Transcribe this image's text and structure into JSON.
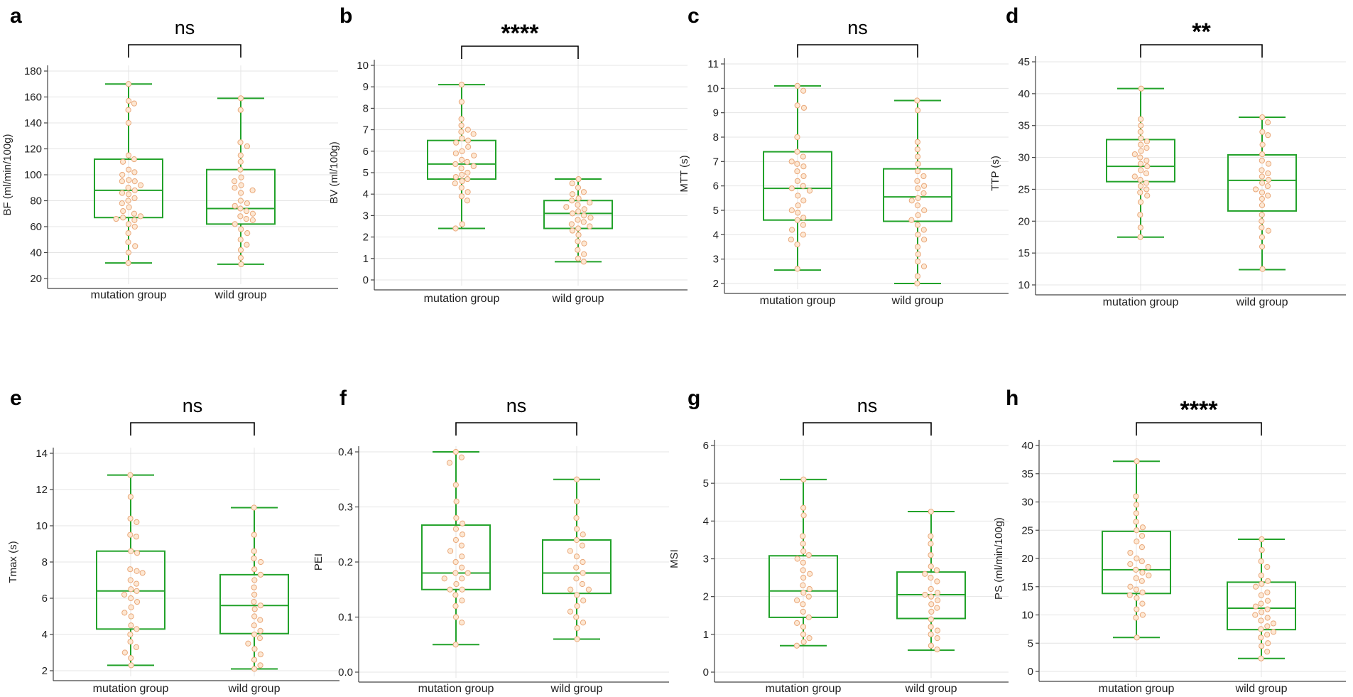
{
  "chart_data": [
    {
      "panel": "a",
      "type": "box",
      "significance": "ns",
      "categories": [
        "mutation group",
        "wild group"
      ],
      "ylabel": "BF (ml/min/100g)",
      "ylim": [
        20,
        180
      ],
      "yticks": [
        20,
        40,
        60,
        80,
        100,
        120,
        140,
        160,
        180
      ],
      "series": [
        {
          "min": 32,
          "q1": 67,
          "median": 88,
          "q3": 112,
          "max": 170,
          "points": [
            170,
            157,
            155,
            150,
            140,
            115,
            112,
            110,
            104,
            102,
            100,
            96,
            95,
            95,
            92,
            90,
            88,
            86,
            85,
            82,
            80,
            78,
            75,
            72,
            70,
            68,
            67,
            66,
            65,
            62,
            60,
            55,
            48,
            45,
            40,
            32
          ]
        },
        {
          "min": 31,
          "q1": 62,
          "median": 74,
          "q3": 104,
          "max": 159,
          "points": [
            159,
            150,
            125,
            122,
            115,
            110,
            104,
            98,
            95,
            92,
            90,
            88,
            86,
            80,
            78,
            76,
            74,
            72,
            70,
            68,
            66,
            65,
            62,
            58,
            55,
            50,
            46,
            42,
            36,
            31
          ]
        }
      ]
    },
    {
      "panel": "b",
      "type": "box",
      "significance": "****",
      "categories": [
        "mutation group",
        "wild group"
      ],
      "ylabel": "BV (ml/100g)",
      "ylim": [
        0,
        10
      ],
      "yticks": [
        0,
        1,
        2,
        3,
        4,
        5,
        6,
        7,
        8,
        9,
        10
      ],
      "series": [
        {
          "min": 2.4,
          "q1": 4.7,
          "median": 5.4,
          "q3": 6.5,
          "max": 9.1,
          "points": [
            9.1,
            8.3,
            7.5,
            7.2,
            7.0,
            6.9,
            6.8,
            6.6,
            6.5,
            6.4,
            6.2,
            6.0,
            5.9,
            5.8,
            5.6,
            5.5,
            5.4,
            5.3,
            5.2,
            5.0,
            4.9,
            4.8,
            4.7,
            4.6,
            4.5,
            4.3,
            4.1,
            3.9,
            3.7,
            2.6,
            2.4
          ]
        },
        {
          "min": 0.85,
          "q1": 2.4,
          "median": 3.1,
          "q3": 3.7,
          "max": 4.7,
          "points": [
            4.7,
            4.5,
            4.3,
            4.1,
            4.0,
            3.8,
            3.7,
            3.6,
            3.5,
            3.4,
            3.3,
            3.2,
            3.1,
            3.0,
            2.9,
            2.8,
            2.7,
            2.6,
            2.5,
            2.4,
            2.3,
            2.1,
            1.8,
            1.7,
            1.4,
            1.2,
            1.0,
            0.85
          ]
        }
      ]
    },
    {
      "panel": "c",
      "type": "box",
      "significance": "ns",
      "categories": [
        "mutation group",
        "wild group"
      ],
      "ylabel": "MTT (s)",
      "ylim": [
        2,
        11
      ],
      "yticks": [
        2,
        3,
        4,
        5,
        6,
        7,
        8,
        9,
        10,
        11
      ],
      "series": [
        {
          "min": 2.55,
          "q1": 4.6,
          "median": 5.9,
          "q3": 7.4,
          "max": 10.1,
          "points": [
            10.1,
            9.9,
            9.3,
            9.2,
            8.0,
            7.4,
            7.2,
            7.0,
            6.9,
            6.8,
            6.6,
            6.4,
            6.2,
            6.0,
            5.9,
            5.8,
            5.6,
            5.4,
            5.2,
            5.0,
            4.9,
            4.7,
            4.6,
            4.4,
            4.2,
            4.0,
            3.8,
            3.6,
            2.6
          ]
        },
        {
          "min": 2.0,
          "q1": 4.55,
          "median": 5.55,
          "q3": 6.7,
          "max": 9.5,
          "points": [
            9.5,
            9.1,
            7.8,
            7.5,
            7.2,
            6.9,
            6.6,
            6.4,
            6.2,
            6.0,
            5.9,
            5.7,
            5.5,
            5.4,
            5.2,
            5.0,
            4.8,
            4.6,
            4.4,
            4.2,
            4.0,
            3.8,
            3.5,
            3.2,
            2.9,
            2.7,
            2.3,
            2.0
          ]
        }
      ]
    },
    {
      "panel": "d",
      "type": "box",
      "significance": "**",
      "categories": [
        "mutation group",
        "wild group"
      ],
      "ylabel": "TTP (s)",
      "ylim": [
        10,
        45
      ],
      "yticks": [
        10,
        15,
        20,
        25,
        30,
        35,
        40,
        45
      ],
      "series": [
        {
          "min": 17.5,
          "q1": 26.2,
          "median": 28.6,
          "q3": 32.8,
          "max": 40.8,
          "points": [
            40.8,
            36.0,
            35.0,
            34.0,
            33.0,
            32.5,
            32.0,
            31.5,
            31.0,
            30.5,
            30.0,
            29.5,
            29.0,
            28.6,
            28.0,
            27.5,
            27.0,
            26.5,
            26.0,
            25.5,
            25.0,
            24.5,
            24.0,
            23.0,
            21.0,
            19.0,
            17.5
          ]
        },
        {
          "min": 12.4,
          "q1": 21.6,
          "median": 26.4,
          "q3": 30.4,
          "max": 36.3,
          "points": [
            36.3,
            35.5,
            34.0,
            33.5,
            32.0,
            30.5,
            29.5,
            29.0,
            28.0,
            27.5,
            27.0,
            26.5,
            26.0,
            25.5,
            25.0,
            24.5,
            24.0,
            23.5,
            22.5,
            21.0,
            20.0,
            19.0,
            18.5,
            17.5,
            16.0,
            12.5
          ]
        }
      ]
    },
    {
      "panel": "e",
      "type": "box",
      "significance": "ns",
      "categories": [
        "mutation group",
        "wild group"
      ],
      "ylabel": "Tmax (s)",
      "ylim": [
        2,
        14
      ],
      "yticks": [
        2,
        4,
        6,
        8,
        10,
        12,
        14
      ],
      "series": [
        {
          "min": 2.3,
          "q1": 4.3,
          "median": 6.4,
          "q3": 8.6,
          "max": 12.8,
          "points": [
            12.8,
            11.6,
            10.4,
            10.2,
            9.5,
            9.4,
            8.6,
            8.5,
            7.6,
            7.5,
            7.4,
            7.0,
            6.8,
            6.5,
            6.4,
            6.2,
            6.0,
            5.8,
            5.5,
            5.2,
            5.0,
            4.5,
            4.3,
            4.0,
            3.6,
            3.3,
            3.0,
            2.7,
            2.3
          ]
        },
        {
          "min": 2.1,
          "q1": 4.05,
          "median": 5.6,
          "q3": 7.3,
          "max": 11.0,
          "points": [
            11.0,
            9.5,
            8.6,
            8.2,
            8.0,
            7.6,
            7.3,
            7.0,
            6.6,
            6.2,
            5.8,
            5.6,
            5.4,
            5.0,
            4.8,
            4.5,
            4.2,
            4.0,
            3.8,
            3.5,
            3.2,
            2.9,
            2.6,
            2.3,
            2.1
          ]
        }
      ]
    },
    {
      "panel": "f",
      "type": "box",
      "significance": "ns",
      "categories": [
        "mutation group",
        "wild group"
      ],
      "ylabel": "PEI",
      "ylim": [
        0,
        0.4
      ],
      "yticks": [
        0.0,
        0.1,
        0.2,
        0.3,
        0.4
      ],
      "ytick_labels": [
        "0.0",
        "0.1",
        "0.2",
        "0.3",
        "0.4"
      ],
      "series": [
        {
          "min": 0.05,
          "q1": 0.15,
          "median": 0.18,
          "q3": 0.267,
          "max": 0.4,
          "points": [
            0.4,
            0.39,
            0.38,
            0.34,
            0.31,
            0.28,
            0.27,
            0.26,
            0.25,
            0.24,
            0.23,
            0.22,
            0.21,
            0.2,
            0.19,
            0.18,
            0.18,
            0.17,
            0.17,
            0.16,
            0.15,
            0.15,
            0.14,
            0.13,
            0.12,
            0.1,
            0.09,
            0.05
          ]
        },
        {
          "min": 0.06,
          "q1": 0.143,
          "median": 0.18,
          "q3": 0.24,
          "max": 0.35,
          "points": [
            0.35,
            0.31,
            0.28,
            0.26,
            0.25,
            0.24,
            0.23,
            0.22,
            0.21,
            0.2,
            0.19,
            0.18,
            0.17,
            0.16,
            0.15,
            0.15,
            0.14,
            0.13,
            0.12,
            0.11,
            0.1,
            0.09,
            0.08,
            0.06
          ]
        }
      ]
    },
    {
      "panel": "g",
      "type": "box",
      "significance": "ns",
      "categories": [
        "mutation group",
        "wild group"
      ],
      "ylabel": "MSI",
      "ylim": [
        0,
        6
      ],
      "yticks": [
        0,
        1,
        2,
        3,
        4,
        5,
        6
      ],
      "series": [
        {
          "min": 0.7,
          "q1": 1.45,
          "median": 2.15,
          "q3": 3.08,
          "max": 5.1,
          "points": [
            5.1,
            4.35,
            4.15,
            3.6,
            3.4,
            3.2,
            3.1,
            3.0,
            2.9,
            2.7,
            2.6,
            2.5,
            2.3,
            2.2,
            2.1,
            2.0,
            1.9,
            1.8,
            1.6,
            1.45,
            1.3,
            1.2,
            1.0,
            0.9,
            0.8,
            0.7
          ]
        },
        {
          "min": 0.58,
          "q1": 1.42,
          "median": 2.05,
          "q3": 2.65,
          "max": 4.25,
          "points": [
            4.25,
            3.6,
            3.4,
            3.1,
            2.8,
            2.7,
            2.6,
            2.5,
            2.4,
            2.2,
            2.1,
            2.05,
            2.0,
            1.9,
            1.8,
            1.7,
            1.6,
            1.4,
            1.2,
            1.1,
            1.0,
            0.9,
            0.7,
            0.6
          ]
        }
      ]
    },
    {
      "panel": "h",
      "type": "box",
      "significance": "****",
      "categories": [
        "mutation group",
        "wild group"
      ],
      "ylabel": "PS (ml/min/100g)",
      "ylim": [
        0,
        40
      ],
      "yticks": [
        0,
        5,
        10,
        15,
        20,
        25,
        30,
        35,
        40
      ],
      "series": [
        {
          "min": 6.0,
          "q1": 13.8,
          "median": 18.0,
          "q3": 24.8,
          "max": 37.2,
          "points": [
            37.2,
            31.0,
            29.5,
            28.0,
            26.5,
            25.5,
            25.0,
            24.0,
            23.0,
            22.0,
            21.0,
            20.0,
            19.5,
            19.0,
            18.5,
            18.0,
            17.5,
            17.0,
            16.5,
            16.0,
            15.0,
            14.5,
            14.0,
            13.5,
            13.0,
            12.0,
            11.0,
            10.0,
            9.5,
            6.0
          ]
        },
        {
          "min": 2.3,
          "q1": 7.4,
          "median": 11.2,
          "q3": 15.8,
          "max": 23.4,
          "points": [
            23.4,
            21.5,
            19.5,
            18.5,
            17.0,
            16.0,
            15.5,
            15.0,
            14.0,
            13.5,
            12.5,
            12.0,
            11.5,
            11.0,
            10.5,
            10.0,
            9.5,
            9.0,
            8.5,
            8.0,
            7.5,
            7.0,
            6.5,
            6.0,
            5.0,
            4.5,
            3.5,
            2.3
          ]
        }
      ]
    }
  ]
}
